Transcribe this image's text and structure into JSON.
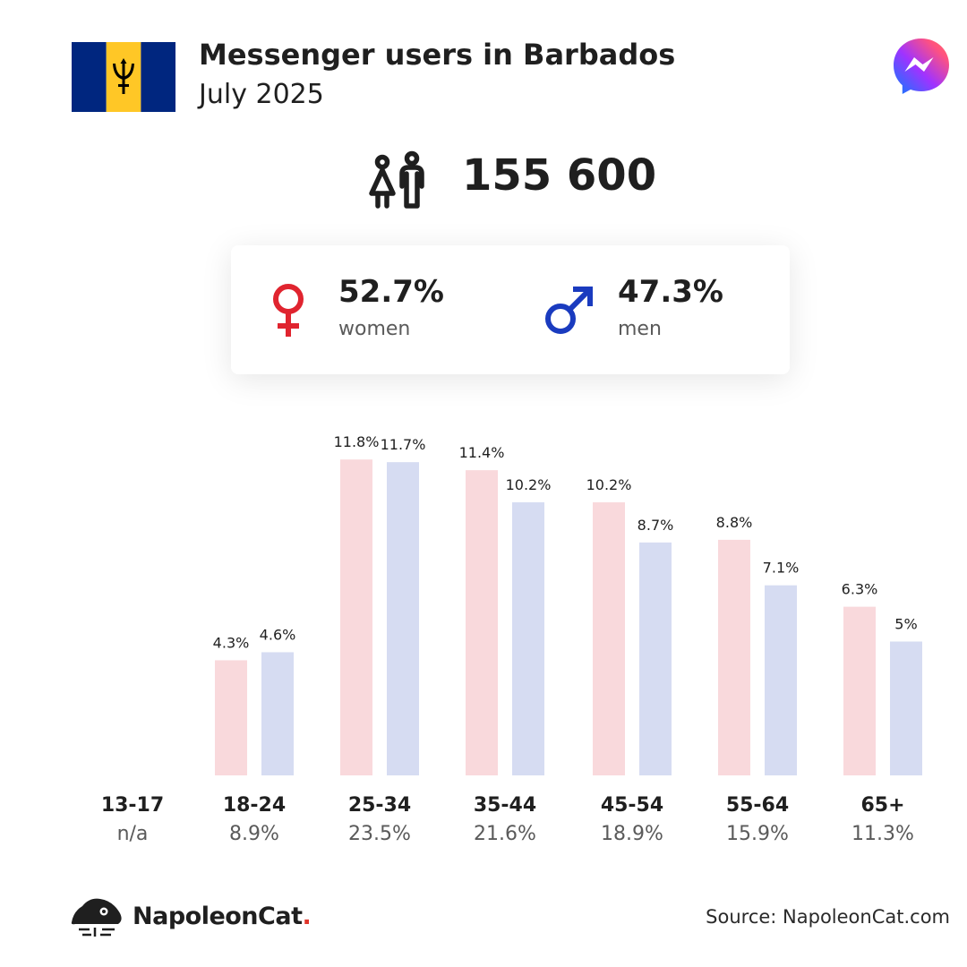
{
  "header": {
    "title": "Messenger users in Barbados",
    "subtitle": "July 2025",
    "flag_icon": "barbados-flag-icon",
    "logo_icon": "messenger-logo-icon"
  },
  "total": {
    "value": "155 600",
    "icon": "users-icon"
  },
  "gender": {
    "women": {
      "value": "52.7%",
      "label": "women",
      "color": "#e0242f",
      "icon": "female-symbol-icon"
    },
    "men": {
      "value": "47.3%",
      "label": "men",
      "color": "#1a3bbf",
      "icon": "male-symbol-icon"
    }
  },
  "chart_data": {
    "type": "bar",
    "categories": [
      "13-17",
      "18-24",
      "25-34",
      "35-44",
      "45-54",
      "55-64",
      "65+"
    ],
    "group_totals": [
      "n/a",
      "8.9%",
      "23.5%",
      "21.6%",
      "18.9%",
      "15.9%",
      "11.3%"
    ],
    "series": [
      {
        "name": "women",
        "color": "#f9d9dc",
        "values": [
          null,
          4.3,
          11.8,
          11.4,
          10.2,
          8.8,
          6.3
        ],
        "labels": [
          "",
          "4.3%",
          "11.8%",
          "11.4%",
          "10.2%",
          "8.8%",
          "6.3%"
        ]
      },
      {
        "name": "men",
        "color": "#d6dcf2",
        "values": [
          null,
          4.6,
          11.7,
          10.2,
          8.7,
          7.1,
          5.0
        ],
        "labels": [
          "",
          "4.6%",
          "11.7%",
          "10.2%",
          "8.7%",
          "7.1%",
          "5%"
        ]
      }
    ],
    "grid": false,
    "legend": "none"
  },
  "footer": {
    "brand": "NapoleonCat",
    "brand_dot": ".",
    "brand_icon": "napoleoncat-logo-icon",
    "source": "Source: NapoleonCat.com"
  }
}
